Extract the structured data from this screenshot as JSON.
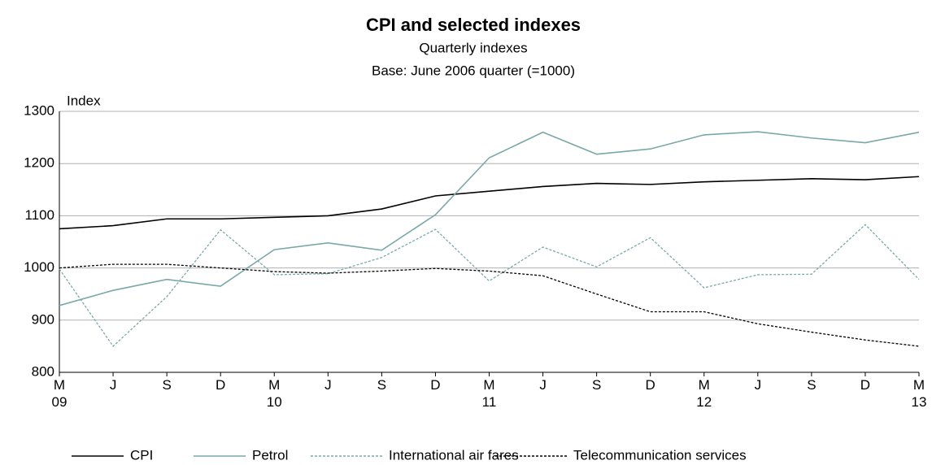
{
  "chart_data": {
    "type": "line",
    "title": "CPI and selected indexes",
    "subtitle": "Quarterly  indexes",
    "subtitle2": "Base: June 2006 quarter (=1000)",
    "y_label": "Index",
    "categories": [
      "M\n09",
      "J",
      "S",
      "D",
      "M\n10",
      "J",
      "S",
      "D",
      "M\n11",
      "J",
      "S",
      "D",
      "M\n12",
      "J",
      "S",
      "D",
      "M\n13"
    ],
    "ylim": [
      800,
      1300
    ],
    "yticks": [
      800,
      900,
      1000,
      1100,
      1200,
      1300
    ],
    "grid": true,
    "legend": "bottom",
    "series": [
      {
        "name": "CPI",
        "color": "#000000",
        "dash": "solid",
        "values": [
          1075,
          1081,
          1094,
          1094,
          1097,
          1100,
          1113,
          1138,
          1147,
          1156,
          1162,
          1160,
          1165,
          1168,
          1171,
          1169,
          1175
        ]
      },
      {
        "name": "Petrol",
        "color": "#7aa8a8",
        "dash": "solid",
        "values": [
          928,
          957,
          978,
          965,
          1035,
          1048,
          1034,
          1102,
          1211,
          1260,
          1218,
          1228,
          1255,
          1261,
          1249,
          1240,
          1260
        ]
      },
      {
        "name": "International air fares",
        "color": "#7aa8a8",
        "dash": "dashed",
        "values": [
          998,
          850,
          945,
          1073,
          987,
          989,
          1020,
          1074,
          975,
          1040,
          1002,
          1058,
          962,
          987,
          988,
          1083,
          978
        ]
      },
      {
        "name": "Telecommunication services",
        "color": "#000000",
        "dash": "dashed",
        "values": [
          1000,
          1007,
          1007,
          1000,
          993,
          990,
          994,
          999,
          994,
          985,
          950,
          916,
          916,
          893,
          877,
          862,
          850
        ]
      }
    ]
  }
}
